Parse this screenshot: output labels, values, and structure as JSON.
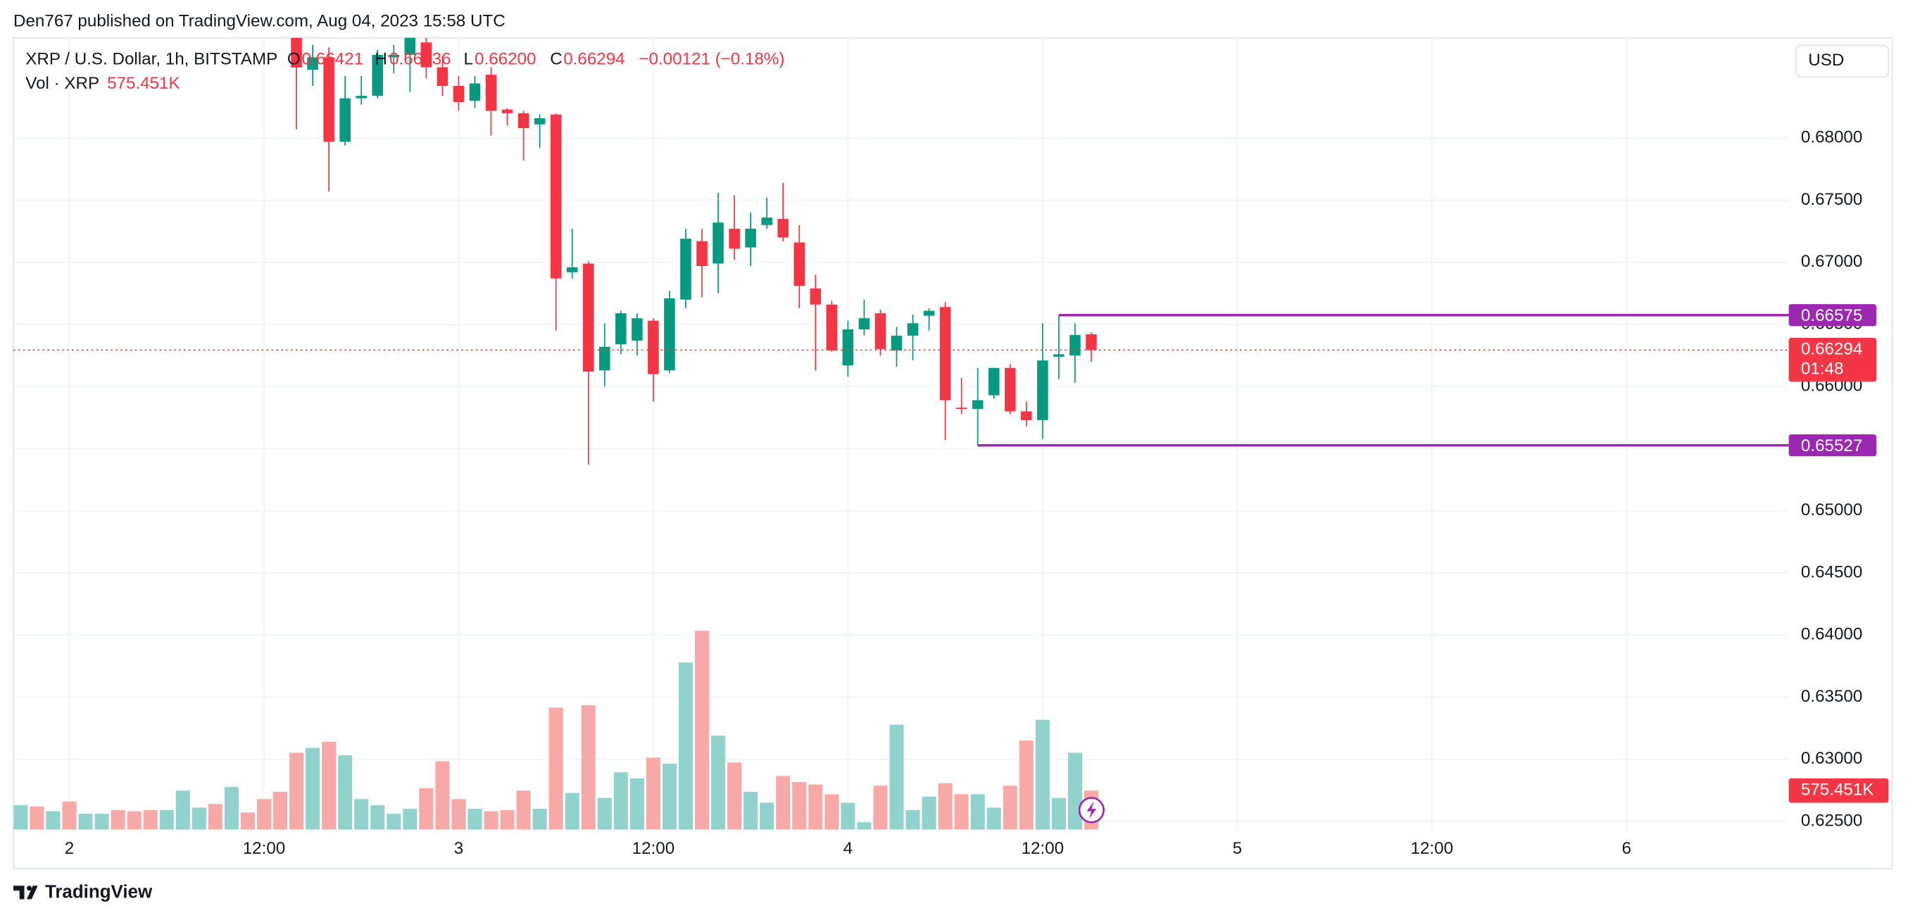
{
  "header": {
    "attribution": "Den767 published on TradingView.com, Aug 04, 2023 15:58 UTC",
    "symbol": "XRP / U.S. Dollar, 1h, BITSTAMP",
    "o_label": "O",
    "open": "0.66421",
    "h_label": "H",
    "high": "0.66436",
    "l_label": "L",
    "low": "0.66200",
    "c_label": "C",
    "close": "0.66294",
    "change": "−0.00121 (−0.18%)",
    "vol_label": "Vol · XRP",
    "currency": "USD"
  },
  "footer": {
    "brand": "TradingView"
  },
  "chart_data": {
    "type": "candlestick",
    "up_color": "#089981",
    "down_color": "#f23645",
    "grid": true,
    "x": [
      14,
      15,
      16,
      17,
      18,
      19,
      20,
      21,
      22,
      23,
      24,
      25,
      26,
      27,
      28,
      29,
      30,
      31,
      32,
      33,
      34,
      35,
      36,
      37,
      38,
      39,
      40,
      41,
      42,
      43,
      44,
      45,
      46,
      47,
      48,
      49,
      50,
      51,
      52,
      53,
      54,
      55,
      56,
      57,
      58,
      59,
      60,
      61,
      62,
      63
    ],
    "open": [
      0.6882,
      0.6855,
      0.6865,
      0.6797,
      0.6832,
      0.6834,
      0.6865,
      0.6867,
      0.6877,
      0.6857,
      0.6842,
      0.683,
      0.6851,
      0.6823,
      0.682,
      0.6811,
      0.6819,
      0.6692,
      0.6699,
      0.6613,
      0.6634,
      0.6637,
      0.6653,
      0.6613,
      0.667,
      0.6717,
      0.6699,
      0.6727,
      0.6712,
      0.673,
      0.6735,
      0.6716,
      0.6679,
      0.6666,
      0.6617,
      0.6646,
      0.6659,
      0.6629,
      0.6641,
      0.6657,
      0.6664,
      0.6583,
      0.6582,
      0.6593,
      0.6615,
      0.658,
      0.6573,
      0.6624,
      0.6625,
      0.66421
    ],
    "high": [
      0.689,
      0.6875,
      0.6873,
      0.685,
      0.685,
      0.6871,
      0.6875,
      0.6892,
      0.6888,
      0.6866,
      0.685,
      0.685,
      0.6857,
      0.6824,
      0.6822,
      0.6819,
      0.682,
      0.6727,
      0.6701,
      0.6651,
      0.6661,
      0.6659,
      0.6655,
      0.6677,
      0.6727,
      0.6727,
      0.6756,
      0.6754,
      0.674,
      0.6752,
      0.6764,
      0.673,
      0.669,
      0.6669,
      0.6653,
      0.667,
      0.6662,
      0.6648,
      0.6658,
      0.6663,
      0.6668,
      0.6607,
      0.6615,
      0.6615,
      0.6618,
      0.6588,
      0.6651,
      0.66575,
      0.6651,
      0.66436
    ],
    "low": [
      0.6807,
      0.6842,
      0.6757,
      0.6794,
      0.6827,
      0.6832,
      0.6852,
      0.6837,
      0.6848,
      0.6834,
      0.6822,
      0.6824,
      0.6802,
      0.681,
      0.6782,
      0.6792,
      0.6645,
      0.6687,
      0.6537,
      0.66,
      0.6626,
      0.6625,
      0.6588,
      0.6611,
      0.6663,
      0.6672,
      0.6675,
      0.6702,
      0.6697,
      0.6727,
      0.6717,
      0.6663,
      0.6613,
      0.6628,
      0.6608,
      0.6641,
      0.6625,
      0.6616,
      0.6621,
      0.6645,
      0.6557,
      0.6578,
      0.65527,
      0.659,
      0.6578,
      0.6568,
      0.6558,
      0.6606,
      0.6603,
      0.662
    ],
    "close": [
      0.68568,
      0.6865,
      0.6797,
      0.6832,
      0.6834,
      0.6867,
      0.6867,
      0.6885,
      0.6857,
      0.6842,
      0.6829,
      0.6844,
      0.6822,
      0.682,
      0.6808,
      0.6816,
      0.6687,
      0.6696,
      0.6612,
      0.6632,
      0.6659,
      0.6655,
      0.661,
      0.6671,
      0.6719,
      0.6697,
      0.6732,
      0.6711,
      0.6727,
      0.6736,
      0.672,
      0.6681,
      0.6666,
      0.6629,
      0.6646,
      0.6655,
      0.663,
      0.6641,
      0.6651,
      0.6661,
      0.6589,
      0.6582,
      0.6589,
      0.6615,
      0.658,
      0.6573,
      0.6621,
      0.6626,
      0.66415,
      0.66294
    ],
    "xlim": [
      -3.45,
      106
    ],
    "xticks": [
      {
        "value": 0,
        "label": "2"
      },
      {
        "value": 12,
        "label": "12:00"
      },
      {
        "value": 24,
        "label": "3"
      },
      {
        "value": 36,
        "label": "12:00"
      },
      {
        "value": 48,
        "label": "4"
      },
      {
        "value": 60,
        "label": "12:00"
      },
      {
        "value": 72,
        "label": "5"
      },
      {
        "value": 84,
        "label": "12:00"
      },
      {
        "value": 96,
        "label": "6"
      }
    ],
    "ylim": [
      0.62434,
      0.68807
    ],
    "yticks": [
      {
        "value": 0.625,
        "label": "0.62500"
      },
      {
        "value": 0.63,
        "label": "0.63000"
      },
      {
        "value": 0.635,
        "label": "0.63500"
      },
      {
        "value": 0.64,
        "label": "0.64000"
      },
      {
        "value": 0.645,
        "label": "0.64500"
      },
      {
        "value": 0.65,
        "label": "0.65000"
      },
      {
        "value": 0.655,
        "label": "0.65500"
      },
      {
        "value": 0.66,
        "label": "0.66000"
      },
      {
        "value": 0.665,
        "label": "0.66500"
      },
      {
        "value": 0.67,
        "label": "0.67000"
      },
      {
        "value": 0.675,
        "label": "0.67500"
      },
      {
        "value": 0.68,
        "label": "0.68000"
      }
    ],
    "price_lines": [
      {
        "value": 0.66575,
        "label": "0.66575",
        "x_start": 61,
        "color": "#9c27b0"
      },
      {
        "value": 0.65527,
        "label": "0.65527",
        "x_start": 56,
        "color": "#9c27b0"
      }
    ],
    "last_price": {
      "value": 0.66294,
      "label": "0.66294",
      "countdown": "01:48",
      "color": "#f23645"
    },
    "volume": {
      "vlim": [
        0,
        11671000
      ],
      "x": [
        -3,
        -2,
        -1,
        0,
        1,
        2,
        3,
        4,
        5,
        6,
        7,
        8,
        9,
        10,
        11,
        12,
        13,
        14,
        15,
        16,
        17,
        18,
        19,
        20,
        21,
        22,
        23,
        24,
        25,
        26,
        27,
        28,
        29,
        30,
        31,
        32,
        33,
        34,
        35,
        36,
        37,
        38,
        39,
        40,
        41,
        42,
        43,
        44,
        45,
        46,
        47,
        48,
        49,
        50,
        51,
        52,
        53,
        54,
        55,
        56,
        57,
        58,
        59,
        60,
        61,
        62,
        63
      ],
      "values": [
        360000,
        342000,
        270000,
        414000,
        234000,
        234000,
        288000,
        270000,
        288000,
        288000,
        575000,
        324000,
        378000,
        629000,
        252000,
        450000,
        557000,
        1133000,
        1205000,
        1295000,
        1097000,
        450000,
        360000,
        234000,
        306000,
        611000,
        1007000,
        450000,
        306000,
        270000,
        288000,
        575000,
        306000,
        1798000,
        540000,
        1834000,
        468000,
        845000,
        755000,
        1061000,
        971000,
        2464000,
        2931000,
        1385000,
        989000,
        557000,
        396000,
        791000,
        701000,
        665000,
        522000,
        396000,
        108000,
        647000,
        1547000,
        288000,
        486000,
        683000,
        522000,
        522000,
        324000,
        647000,
        1313000,
        1618000,
        468000,
        1133000,
        575451
      ],
      "colors": [
        "#92d2cc",
        "#f7a9a7",
        "#92d2cc",
        "#f7a9a7",
        "#92d2cc",
        "#92d2cc",
        "#f7a9a7",
        "#f7a9a7",
        "#f7a9a7",
        "#92d2cc",
        "#92d2cc",
        "#92d2cc",
        "#f7a9a7",
        "#92d2cc",
        "#f7a9a7",
        "#f7a9a7",
        "#f7a9a7",
        "#f7a9a7",
        "#92d2cc",
        "#f7a9a7",
        "#92d2cc",
        "#92d2cc",
        "#92d2cc",
        "#92d2cc",
        "#92d2cc",
        "#f7a9a7",
        "#f7a9a7",
        "#f7a9a7",
        "#92d2cc",
        "#f7a9a7",
        "#f7a9a7",
        "#f7a9a7",
        "#92d2cc",
        "#f7a9a7",
        "#92d2cc",
        "#f7a9a7",
        "#92d2cc",
        "#92d2cc",
        "#92d2cc",
        "#f7a9a7",
        "#92d2cc",
        "#92d2cc",
        "#f7a9a7",
        "#92d2cc",
        "#f7a9a7",
        "#92d2cc",
        "#92d2cc",
        "#f7a9a7",
        "#f7a9a7",
        "#f7a9a7",
        "#f7a9a7",
        "#92d2cc",
        "#92d2cc",
        "#f7a9a7",
        "#92d2cc",
        "#92d2cc",
        "#92d2cc",
        "#f7a9a7",
        "#f7a9a7",
        "#92d2cc",
        "#92d2cc",
        "#f7a9a7",
        "#f7a9a7",
        "#92d2cc",
        "#92d2cc",
        "#92d2cc",
        "#f7a9a7"
      ],
      "last_label": "575.451K",
      "label_color": "#f23645"
    }
  }
}
